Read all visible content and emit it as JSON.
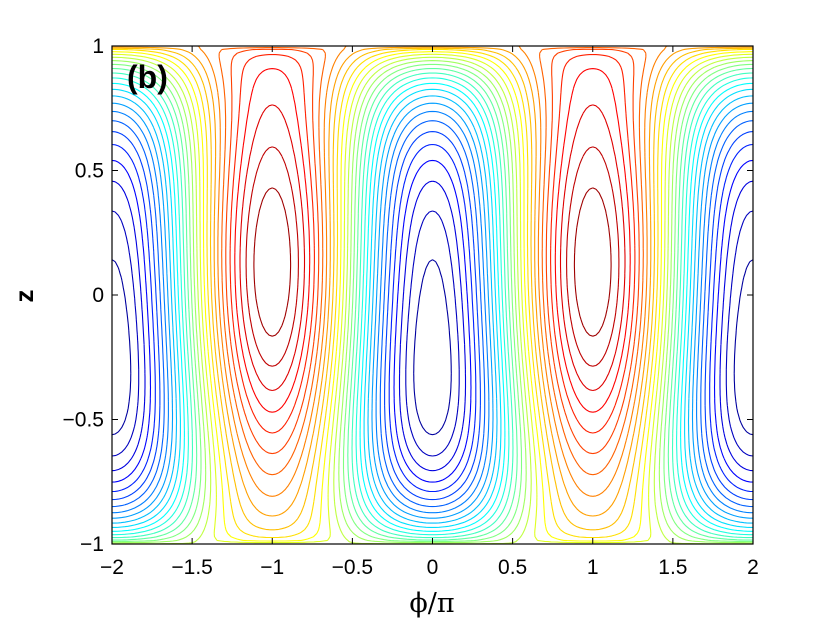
{
  "chart_data": {
    "type": "contour",
    "panel_label": "(b)",
    "xlabel": "ϕ/π",
    "ylabel": "z",
    "xlim": [
      -2,
      2
    ],
    "ylim": [
      -1,
      1
    ],
    "x_ticks": [
      -2,
      -1.5,
      -1,
      -0.5,
      0,
      0.5,
      1,
      1.5,
      2
    ],
    "x_tick_labels": [
      "−2",
      "−1.5",
      "−1",
      "−0.5",
      "0",
      "0.5",
      "1",
      "1.5",
      "2"
    ],
    "y_ticks": [
      -1,
      -0.5,
      0,
      0.5,
      1
    ],
    "y_tick_labels": [
      "−1",
      "−0.5",
      "0",
      "0.5",
      "1"
    ],
    "colormap": "jet",
    "levels": 32,
    "features": {
      "minima": [
        [
          -2,
          0
        ],
        [
          0,
          0
        ],
        [
          2,
          0
        ]
      ],
      "maxima_top": [
        [
          -1,
          0.95
        ],
        [
          1,
          0.95
        ]
      ],
      "maxima_bottom": [
        [
          -1,
          -0.95
        ],
        [
          1,
          -0.95
        ]
      ],
      "maxima_lower": [
        [
          -1,
          -0.5
        ],
        [
          1,
          -0.5
        ]
      ],
      "saddles": [
        [
          -1,
          0
        ],
        [
          1,
          0
        ]
      ]
    }
  }
}
